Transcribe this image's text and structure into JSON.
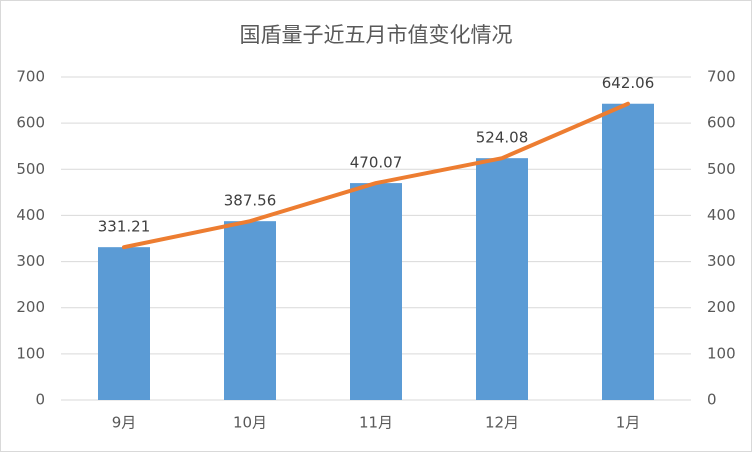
{
  "chart_data": {
    "type": "combo",
    "title": "国盾量子近五月市值变化情况",
    "categories": [
      "9月",
      "10月",
      "11月",
      "12月",
      "1月"
    ],
    "series": [
      {
        "type": "bar",
        "color": "#5b9bd5",
        "values": [
          331.21,
          387.56,
          470.07,
          524.08,
          642.06
        ]
      },
      {
        "type": "line",
        "axis": "y2",
        "color": "#ed7d31",
        "values": [
          331.21,
          387.56,
          470.07,
          524.08,
          642.06
        ]
      }
    ],
    "ylim": [
      0,
      700
    ],
    "yticks": [
      0,
      100,
      200,
      300,
      400,
      500,
      600,
      700
    ],
    "y2lim": [
      0,
      700
    ],
    "y2ticks": [
      0,
      100,
      200,
      300,
      400,
      500,
      600,
      700
    ],
    "grid": true
  }
}
